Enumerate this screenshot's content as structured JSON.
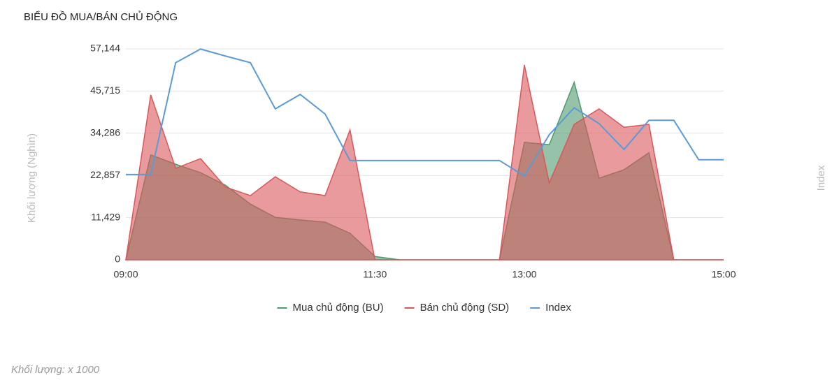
{
  "chart_data": {
    "type": "area",
    "title": "BIỂU ĐỒ MUA/BÁN CHỦ ĐỘNG",
    "y_label": "Khối lượng (Nghìn)",
    "y2_label": "Index",
    "note": "Khối lượng: x 1000",
    "x": [
      "09:00",
      "09:15",
      "09:30",
      "09:45",
      "10:00",
      "10:15",
      "10:30",
      "10:45",
      "11:00",
      "11:15",
      "11:30",
      "11:45",
      "12:00",
      "12:15",
      "12:30",
      "12:45",
      "13:00",
      "13:15",
      "13:30",
      "13:45",
      "14:00",
      "14:15",
      "14:30",
      "14:45",
      "15:00"
    ],
    "xticks": [
      "09:00",
      "11:30",
      "13:00",
      "15:00"
    ],
    "ylim": [
      0,
      57144
    ],
    "yticks": [
      0,
      {
        "value": 11429,
        "label": "11,429"
      },
      {
        "value": 22857,
        "label": "22,857"
      },
      {
        "value": 34286,
        "label": "34,286"
      },
      {
        "value": 45715,
        "label": "45,715"
      },
      {
        "value": 57144,
        "label": "57,144"
      }
    ],
    "grid": true,
    "legend": "bottom",
    "series": [
      {
        "name": "Mua chủ động (BU)",
        "type": "area",
        "color": "#4e9a6f",
        "values": [
          0,
          28400,
          25900,
          23600,
          20200,
          15100,
          11500,
          10800,
          10200,
          7200,
          900,
          0,
          0,
          0,
          0,
          0,
          31800,
          31200,
          48100,
          22100,
          24400,
          29000,
          0,
          0,
          0
        ]
      },
      {
        "name": "Bán chủ động (SD)",
        "type": "area",
        "color": "#d9575a",
        "values": [
          0,
          44700,
          24800,
          27400,
          19700,
          17400,
          22500,
          18400,
          17400,
          35200,
          0,
          0,
          0,
          0,
          0,
          0,
          52800,
          20800,
          36700,
          40900,
          35900,
          36700,
          0,
          0,
          0
        ]
      },
      {
        "name": "Index",
        "type": "line",
        "color": "#5b9bd5",
        "values": [
          23100,
          23100,
          53400,
          57100,
          55200,
          53400,
          40900,
          44800,
          39500,
          26900,
          26900,
          26900,
          26900,
          26900,
          26900,
          26900,
          22700,
          33900,
          41200,
          36900,
          29900,
          37800,
          37800,
          27100,
          27100
        ]
      }
    ]
  }
}
